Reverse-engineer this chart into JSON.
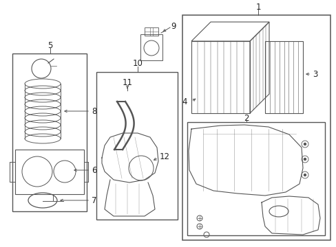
{
  "bg_color": "#ffffff",
  "line_color": "#555555",
  "text_color": "#222222",
  "fig_width": 4.89,
  "fig_height": 3.6,
  "dpi": 100
}
